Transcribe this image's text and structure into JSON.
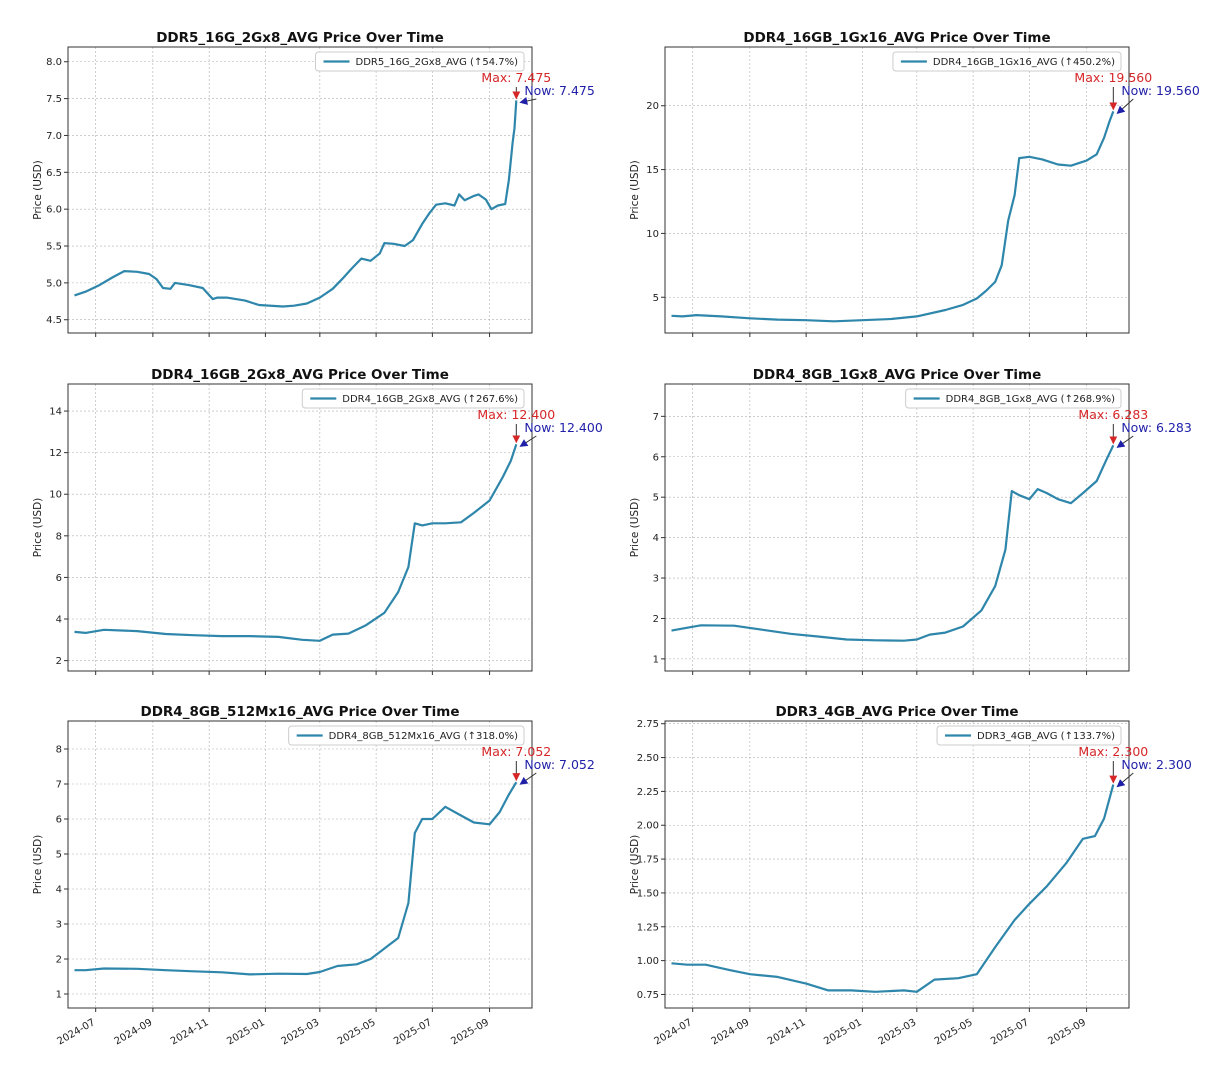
{
  "colors": {
    "line": "#2e86ab",
    "legend_line": "#2e86ab",
    "max_annotation": "#d62728",
    "now_annotation": "#1f1fa8",
    "grid": "#b0b0b0",
    "axes": "#333333"
  },
  "chart_data": [
    {
      "type": "line",
      "title": "DDR5_16G_2Gx8_AVG Price Over Time",
      "ylabel": "Price (USD)",
      "legend": "DDR5_16G_2Gx8_AVG (↑54.7%)",
      "legend_position": "top-right",
      "grid": true,
      "ylim": [
        4.32,
        8.2
      ],
      "yticks": [
        4.5,
        5.0,
        5.5,
        6.0,
        6.5,
        7.0,
        7.5,
        8.0
      ],
      "ytick_labels": [
        "4.5",
        "5.0",
        "5.5",
        "6.0",
        "6.5",
        "7.0",
        "7.5",
        "8.0"
      ],
      "xlim": [
        "2024-06-01",
        "2025-10-17"
      ],
      "xticks": [
        "2024-07-01",
        "2024-09-01",
        "2024-11-01",
        "2025-01-01",
        "2025-03-01",
        "2025-05-01",
        "2025-07-01",
        "2025-09-01"
      ],
      "xtick_labels": [
        "2024-07",
        "2024-09",
        "2024-11",
        "2025-01",
        "2025-03",
        "2025-05",
        "2025-07",
        "2025-09"
      ],
      "show_xtick_labels": false,
      "max_label": "Max: 7.475",
      "now_label": "Now: 7.475",
      "points": [
        [
          "2024-06-08",
          4.83
        ],
        [
          "2024-06-20",
          4.88
        ],
        [
          "2024-07-05",
          4.97
        ],
        [
          "2024-07-20",
          5.08
        ],
        [
          "2024-08-01",
          5.16
        ],
        [
          "2024-08-15",
          5.15
        ],
        [
          "2024-08-28",
          5.12
        ],
        [
          "2024-09-05",
          5.05
        ],
        [
          "2024-09-12",
          4.93
        ],
        [
          "2024-09-20",
          4.92
        ],
        [
          "2024-09-25",
          5.0
        ],
        [
          "2024-10-10",
          4.97
        ],
        [
          "2024-10-25",
          4.93
        ],
        [
          "2024-11-05",
          4.78
        ],
        [
          "2024-11-10",
          4.8
        ],
        [
          "2024-11-20",
          4.8
        ],
        [
          "2024-12-10",
          4.76
        ],
        [
          "2024-12-25",
          4.7
        ],
        [
          "2025-01-20",
          4.68
        ],
        [
          "2025-02-01",
          4.69
        ],
        [
          "2025-02-15",
          4.72
        ],
        [
          "2025-03-01",
          4.8
        ],
        [
          "2025-03-15",
          4.92
        ],
        [
          "2025-03-25",
          5.05
        ],
        [
          "2025-04-05",
          5.2
        ],
        [
          "2025-04-15",
          5.33
        ],
        [
          "2025-04-25",
          5.3
        ],
        [
          "2025-05-05",
          5.4
        ],
        [
          "2025-05-10",
          5.54
        ],
        [
          "2025-05-20",
          5.53
        ],
        [
          "2025-06-01",
          5.5
        ],
        [
          "2025-06-10",
          5.58
        ],
        [
          "2025-06-20",
          5.8
        ],
        [
          "2025-06-28",
          5.95
        ],
        [
          "2025-07-05",
          6.06
        ],
        [
          "2025-07-15",
          6.08
        ],
        [
          "2025-07-25",
          6.05
        ],
        [
          "2025-07-30",
          6.2
        ],
        [
          "2025-08-05",
          6.12
        ],
        [
          "2025-08-15",
          6.18
        ],
        [
          "2025-08-20",
          6.2
        ],
        [
          "2025-08-28",
          6.13
        ],
        [
          "2025-09-03",
          6.0
        ],
        [
          "2025-09-10",
          6.05
        ],
        [
          "2025-09-18",
          6.07
        ],
        [
          "2025-09-22",
          6.4
        ],
        [
          "2025-09-26",
          6.9
        ],
        [
          "2025-09-28",
          7.1
        ],
        [
          "2025-09-30",
          7.475
        ]
      ]
    },
    {
      "type": "line",
      "title": "DDR4_16GB_1Gx16_AVG Price Over Time",
      "ylabel": "Price (USD)",
      "legend": "DDR4_16GB_1Gx16_AVG (↑450.2%)",
      "legend_position": "top-right",
      "grid": true,
      "ylim": [
        2.2,
        24.6
      ],
      "yticks": [
        5,
        10,
        15,
        20
      ],
      "ytick_labels": [
        "5",
        "10",
        "15",
        "20"
      ],
      "xlim": [
        "2024-06-01",
        "2025-10-17"
      ],
      "xticks": [
        "2024-07-01",
        "2024-09-01",
        "2024-11-01",
        "2025-01-01",
        "2025-03-01",
        "2025-05-01",
        "2025-07-01",
        "2025-09-01"
      ],
      "xtick_labels": [
        "2024-07",
        "2024-09",
        "2024-11",
        "2025-01",
        "2025-03",
        "2025-05",
        "2025-07",
        "2025-09"
      ],
      "show_xtick_labels": false,
      "max_label": "Max: 19.560",
      "now_label": "Now: 19.560",
      "points": [
        [
          "2024-06-08",
          3.55
        ],
        [
          "2024-06-20",
          3.5
        ],
        [
          "2024-07-05",
          3.6
        ],
        [
          "2024-08-01",
          3.5
        ],
        [
          "2024-09-01",
          3.35
        ],
        [
          "2024-10-01",
          3.25
        ],
        [
          "2024-11-01",
          3.2
        ],
        [
          "2024-12-01",
          3.12
        ],
        [
          "2025-01-01",
          3.2
        ],
        [
          "2025-02-01",
          3.3
        ],
        [
          "2025-03-01",
          3.5
        ],
        [
          "2025-04-01",
          4.0
        ],
        [
          "2025-04-20",
          4.4
        ],
        [
          "2025-05-05",
          4.9
        ],
        [
          "2025-05-15",
          5.5
        ],
        [
          "2025-05-25",
          6.2
        ],
        [
          "2025-06-01",
          7.5
        ],
        [
          "2025-06-08",
          11.0
        ],
        [
          "2025-06-15",
          13.0
        ],
        [
          "2025-06-20",
          15.9
        ],
        [
          "2025-07-01",
          16.0
        ],
        [
          "2025-07-15",
          15.8
        ],
        [
          "2025-08-01",
          15.4
        ],
        [
          "2025-08-15",
          15.3
        ],
        [
          "2025-09-01",
          15.7
        ],
        [
          "2025-09-12",
          16.2
        ],
        [
          "2025-09-20",
          17.5
        ],
        [
          "2025-09-26",
          18.8
        ],
        [
          "2025-09-30",
          19.56
        ]
      ]
    },
    {
      "type": "line",
      "title": "DDR4_16GB_2Gx8_AVG Price Over Time",
      "ylabel": "Price (USD)",
      "legend": "DDR4_16GB_2Gx8_AVG (↑267.6%)",
      "legend_position": "top-right",
      "grid": true,
      "ylim": [
        1.5,
        15.3
      ],
      "yticks": [
        2,
        4,
        6,
        8,
        10,
        12,
        14
      ],
      "ytick_labels": [
        "2",
        "4",
        "6",
        "8",
        "10",
        "12",
        "14"
      ],
      "xlim": [
        "2024-06-01",
        "2025-10-17"
      ],
      "xticks": [
        "2024-07-01",
        "2024-09-01",
        "2024-11-01",
        "2025-01-01",
        "2025-03-01",
        "2025-05-01",
        "2025-07-01",
        "2025-09-01"
      ],
      "xtick_labels": [
        "2024-07",
        "2024-09",
        "2024-11",
        "2025-01",
        "2025-03",
        "2025-05",
        "2025-07",
        "2025-09"
      ],
      "show_xtick_labels": false,
      "max_label": "Max: 12.400",
      "now_label": "Now: 12.400",
      "points": [
        [
          "2024-06-08",
          3.38
        ],
        [
          "2024-06-20",
          3.33
        ],
        [
          "2024-07-10",
          3.48
        ],
        [
          "2024-08-15",
          3.42
        ],
        [
          "2024-09-15",
          3.28
        ],
        [
          "2024-10-15",
          3.22
        ],
        [
          "2024-11-15",
          3.18
        ],
        [
          "2024-12-15",
          3.18
        ],
        [
          "2025-01-15",
          3.14
        ],
        [
          "2025-02-10",
          3.0
        ],
        [
          "2025-03-01",
          2.95
        ],
        [
          "2025-03-15",
          3.25
        ],
        [
          "2025-04-01",
          3.3
        ],
        [
          "2025-04-20",
          3.7
        ],
        [
          "2025-05-10",
          4.3
        ],
        [
          "2025-05-25",
          5.3
        ],
        [
          "2025-06-05",
          6.5
        ],
        [
          "2025-06-12",
          8.6
        ],
        [
          "2025-06-20",
          8.5
        ],
        [
          "2025-07-01",
          8.6
        ],
        [
          "2025-07-15",
          8.6
        ],
        [
          "2025-08-01",
          8.65
        ],
        [
          "2025-08-15",
          9.1
        ],
        [
          "2025-09-01",
          9.7
        ],
        [
          "2025-09-15",
          10.8
        ],
        [
          "2025-09-24",
          11.6
        ],
        [
          "2025-09-30",
          12.4
        ]
      ]
    },
    {
      "type": "line",
      "title": "DDR4_8GB_1Gx8_AVG Price Over Time",
      "ylabel": "Price (USD)",
      "legend": "DDR4_8GB_1Gx8_AVG (↑268.9%)",
      "legend_position": "top-right",
      "grid": true,
      "ylim": [
        0.7,
        7.8
      ],
      "yticks": [
        1,
        2,
        3,
        4,
        5,
        6,
        7
      ],
      "ytick_labels": [
        "1",
        "2",
        "3",
        "4",
        "5",
        "6",
        "7"
      ],
      "xlim": [
        "2024-06-01",
        "2025-10-17"
      ],
      "xticks": [
        "2024-07-01",
        "2024-09-01",
        "2024-11-01",
        "2025-01-01",
        "2025-03-01",
        "2025-05-01",
        "2025-07-01",
        "2025-09-01"
      ],
      "xtick_labels": [
        "2024-07",
        "2024-09",
        "2024-11",
        "2025-01",
        "2025-03",
        "2025-05",
        "2025-07",
        "2025-09"
      ],
      "show_xtick_labels": false,
      "max_label": "Max: 6.283",
      "now_label": "Now: 6.283",
      "points": [
        [
          "2024-06-08",
          1.7
        ],
        [
          "2024-06-20",
          1.75
        ],
        [
          "2024-07-10",
          1.83
        ],
        [
          "2024-08-15",
          1.82
        ],
        [
          "2024-09-15",
          1.72
        ],
        [
          "2024-10-15",
          1.62
        ],
        [
          "2024-11-15",
          1.55
        ],
        [
          "2024-12-15",
          1.48
        ],
        [
          "2025-01-15",
          1.46
        ],
        [
          "2025-02-15",
          1.45
        ],
        [
          "2025-03-01",
          1.48
        ],
        [
          "2025-03-15",
          1.6
        ],
        [
          "2025-04-01",
          1.65
        ],
        [
          "2025-04-20",
          1.8
        ],
        [
          "2025-05-10",
          2.2
        ],
        [
          "2025-05-25",
          2.8
        ],
        [
          "2025-06-05",
          3.7
        ],
        [
          "2025-06-12",
          5.15
        ],
        [
          "2025-06-20",
          5.05
        ],
        [
          "2025-07-01",
          4.95
        ],
        [
          "2025-07-10",
          5.2
        ],
        [
          "2025-07-20",
          5.1
        ],
        [
          "2025-08-01",
          4.95
        ],
        [
          "2025-08-15",
          4.85
        ],
        [
          "2025-08-28",
          5.1
        ],
        [
          "2025-09-12",
          5.4
        ],
        [
          "2025-09-22",
          5.9
        ],
        [
          "2025-09-30",
          6.283
        ]
      ]
    },
    {
      "type": "line",
      "title": "DDR4_8GB_512Mx16_AVG Price Over Time",
      "ylabel": "Price (USD)",
      "legend": "DDR4_8GB_512Mx16_AVG (↑318.0%)",
      "legend_position": "top-right",
      "grid": true,
      "ylim": [
        0.6,
        8.8
      ],
      "yticks": [
        1,
        2,
        3,
        4,
        5,
        6,
        7,
        8
      ],
      "ytick_labels": [
        "1",
        "2",
        "3",
        "4",
        "5",
        "6",
        "7",
        "8"
      ],
      "xlim": [
        "2024-06-01",
        "2025-10-17"
      ],
      "xticks": [
        "2024-07-01",
        "2024-09-01",
        "2024-11-01",
        "2025-01-01",
        "2025-03-01",
        "2025-05-01",
        "2025-07-01",
        "2025-09-01"
      ],
      "xtick_labels": [
        "2024-07",
        "2024-09",
        "2024-11",
        "2025-01",
        "2025-03",
        "2025-05",
        "2025-07",
        "2025-09"
      ],
      "show_xtick_labels": true,
      "max_label": "Max: 7.052",
      "now_label": "Now: 7.052",
      "points": [
        [
          "2024-06-08",
          1.68
        ],
        [
          "2024-06-20",
          1.68
        ],
        [
          "2024-07-10",
          1.73
        ],
        [
          "2024-08-15",
          1.72
        ],
        [
          "2024-09-15",
          1.68
        ],
        [
          "2024-10-15",
          1.65
        ],
        [
          "2024-11-15",
          1.62
        ],
        [
          "2024-12-15",
          1.56
        ],
        [
          "2025-01-15",
          1.58
        ],
        [
          "2025-02-15",
          1.57
        ],
        [
          "2025-03-01",
          1.63
        ],
        [
          "2025-03-20",
          1.8
        ],
        [
          "2025-04-10",
          1.85
        ],
        [
          "2025-04-25",
          2.0
        ],
        [
          "2025-05-10",
          2.3
        ],
        [
          "2025-05-25",
          2.6
        ],
        [
          "2025-06-05",
          3.6
        ],
        [
          "2025-06-12",
          5.6
        ],
        [
          "2025-06-20",
          6.0
        ],
        [
          "2025-07-01",
          6.0
        ],
        [
          "2025-07-15",
          6.35
        ],
        [
          "2025-08-01",
          6.1
        ],
        [
          "2025-08-15",
          5.9
        ],
        [
          "2025-09-01",
          5.85
        ],
        [
          "2025-09-12",
          6.2
        ],
        [
          "2025-09-22",
          6.7
        ],
        [
          "2025-09-30",
          7.052
        ]
      ]
    },
    {
      "type": "line",
      "title": "DDR3_4GB_AVG Price Over Time",
      "ylabel": "Price (USD)",
      "legend": "DDR3_4GB_AVG (↑133.7%)",
      "legend_position": "top-right",
      "grid": true,
      "ylim": [
        0.65,
        2.77
      ],
      "yticks": [
        0.75,
        1.0,
        1.25,
        1.5,
        1.75,
        2.0,
        2.25,
        2.5,
        2.75
      ],
      "ytick_labels": [
        "0.75",
        "1.00",
        "1.25",
        "1.50",
        "1.75",
        "2.00",
        "2.25",
        "2.50",
        "2.75"
      ],
      "xlim": [
        "2024-06-01",
        "2025-10-17"
      ],
      "xticks": [
        "2024-07-01",
        "2024-09-01",
        "2024-11-01",
        "2025-01-01",
        "2025-03-01",
        "2025-05-01",
        "2025-07-01",
        "2025-09-01"
      ],
      "xtick_labels": [
        "2024-07",
        "2024-09",
        "2024-11",
        "2025-01",
        "2025-03",
        "2025-05",
        "2025-07",
        "2025-09"
      ],
      "show_xtick_labels": true,
      "max_label": "Max: 2.300",
      "now_label": "Now: 2.300",
      "points": [
        [
          "2024-06-08",
          0.98
        ],
        [
          "2024-06-25",
          0.97
        ],
        [
          "2024-07-15",
          0.97
        ],
        [
          "2024-08-10",
          0.93
        ],
        [
          "2024-09-01",
          0.9
        ],
        [
          "2024-10-01",
          0.88
        ],
        [
          "2024-11-01",
          0.83
        ],
        [
          "2024-11-25",
          0.78
        ],
        [
          "2024-12-20",
          0.78
        ],
        [
          "2025-01-15",
          0.77
        ],
        [
          "2025-02-15",
          0.78
        ],
        [
          "2025-03-01",
          0.77
        ],
        [
          "2025-03-20",
          0.86
        ],
        [
          "2025-04-15",
          0.87
        ],
        [
          "2025-05-05",
          0.9
        ],
        [
          "2025-05-25",
          1.1
        ],
        [
          "2025-06-15",
          1.3
        ],
        [
          "2025-07-01",
          1.42
        ],
        [
          "2025-07-20",
          1.55
        ],
        [
          "2025-08-10",
          1.72
        ],
        [
          "2025-08-28",
          1.9
        ],
        [
          "2025-09-10",
          1.92
        ],
        [
          "2025-09-20",
          2.05
        ],
        [
          "2025-09-30",
          2.3
        ]
      ]
    }
  ]
}
